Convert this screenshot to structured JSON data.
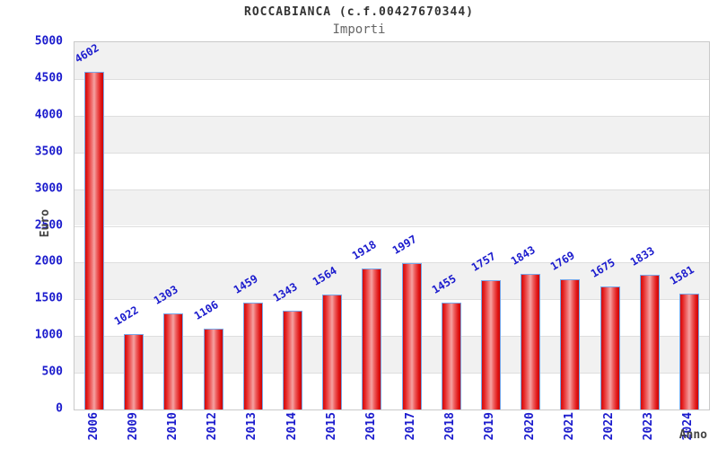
{
  "chart_data": {
    "type": "bar",
    "title": "ROCCABIANCA (c.f.00427670344)",
    "subtitle": "Importi",
    "xlabel": "Anno",
    "ylabel": "Euro",
    "categories": [
      "2006",
      "2009",
      "2010",
      "2012",
      "2013",
      "2014",
      "2015",
      "2016",
      "2017",
      "2018",
      "2019",
      "2020",
      "2021",
      "2022",
      "2023",
      "2024"
    ],
    "values": [
      4602,
      1022,
      1303,
      1106,
      1459,
      1343,
      1564,
      1918,
      1997,
      1455,
      1757,
      1843,
      1769,
      1675,
      1833,
      1581
    ],
    "ylim": [
      0,
      5000
    ],
    "yticks": [
      0,
      500,
      1000,
      1500,
      2000,
      2500,
      3000,
      3500,
      4000,
      4500,
      5000
    ],
    "grid": "alternating-horizontal-bands",
    "legend": "none",
    "colors": {
      "bar_fill": "#e32222",
      "bar_highlight": "#f5a2a2",
      "bar_border": "#79a7e8",
      "tick_label": "#1b1bcd",
      "value_label": "#1b1bcd",
      "band_gray": "#f1f1f1",
      "band_white": "#ffffff",
      "title_text": "#333333",
      "subtitle_text": "#666666",
      "axis_title_text": "#444444",
      "plot_border": "#c9c9c9"
    }
  }
}
